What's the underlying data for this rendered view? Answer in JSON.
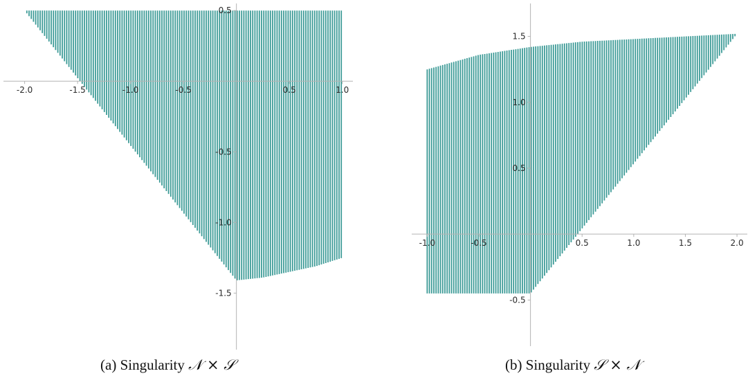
{
  "fill_color": "#3d9b97",
  "chart_data": [
    {
      "type": "area",
      "caption_label": "(a)",
      "caption_text": "Singularity",
      "caption_math": "𝒩 × 𝒮",
      "xlim": [
        -2.2,
        1.1
      ],
      "ylim": [
        -1.9,
        0.55
      ],
      "x_ticks": [
        {
          "value": -2.0,
          "label": "-2.0"
        },
        {
          "value": -1.5,
          "label": "-1.5"
        },
        {
          "value": -1.0,
          "label": "-1.0"
        },
        {
          "value": -0.5,
          "label": "-0.5"
        },
        {
          "value": 0.5,
          "label": "0.5"
        },
        {
          "value": 1.0,
          "label": "1.0"
        }
      ],
      "y_ticks": [
        {
          "value": 0.5,
          "label": "0.5"
        },
        {
          "value": -0.5,
          "label": "-0.5"
        },
        {
          "value": -1.0,
          "label": "-1.0"
        },
        {
          "value": -1.5,
          "label": "-1.5"
        }
      ],
      "region": {
        "x_range": [
          -2.0,
          1.0
        ],
        "upper": [
          [
            -2.0,
            0.5
          ],
          [
            1.0,
            0.5
          ]
        ],
        "lower": [
          [
            -2.0,
            0.5
          ],
          [
            0.0,
            -1.41
          ],
          [
            0.25,
            -1.39
          ],
          [
            0.5,
            -1.35
          ],
          [
            0.75,
            -1.31
          ],
          [
            1.0,
            -1.25
          ]
        ]
      }
    },
    {
      "type": "area",
      "caption_label": "(b)",
      "caption_text": "Singularity",
      "caption_math": "𝒮 × 𝒩",
      "xlim": [
        -1.15,
        2.1
      ],
      "ylim": [
        -0.85,
        1.75
      ],
      "x_ticks": [
        {
          "value": -1.0,
          "label": "-1.0"
        },
        {
          "value": -0.5,
          "label": "-0.5"
        },
        {
          "value": 0.5,
          "label": "0.5"
        },
        {
          "value": 1.0,
          "label": "1.0"
        },
        {
          "value": 1.5,
          "label": "1.5"
        },
        {
          "value": 2.0,
          "label": "2.0"
        }
      ],
      "y_ticks": [
        {
          "value": 1.5,
          "label": "1.5"
        },
        {
          "value": 1.0,
          "label": "1.0"
        },
        {
          "value": 0.5,
          "label": "0.5"
        },
        {
          "value": -0.5,
          "label": "-0.5"
        }
      ],
      "region": {
        "x_range": [
          -1.0,
          2.0
        ],
        "upper": [
          [
            -1.0,
            1.25
          ],
          [
            -0.5,
            1.36
          ],
          [
            0.0,
            1.42
          ],
          [
            0.5,
            1.46
          ],
          [
            1.0,
            1.48
          ],
          [
            1.5,
            1.5
          ],
          [
            2.0,
            1.52
          ]
        ],
        "lower": [
          [
            -1.0,
            -0.45
          ],
          [
            0.0,
            -0.45
          ],
          [
            2.0,
            1.52
          ]
        ]
      }
    }
  ]
}
